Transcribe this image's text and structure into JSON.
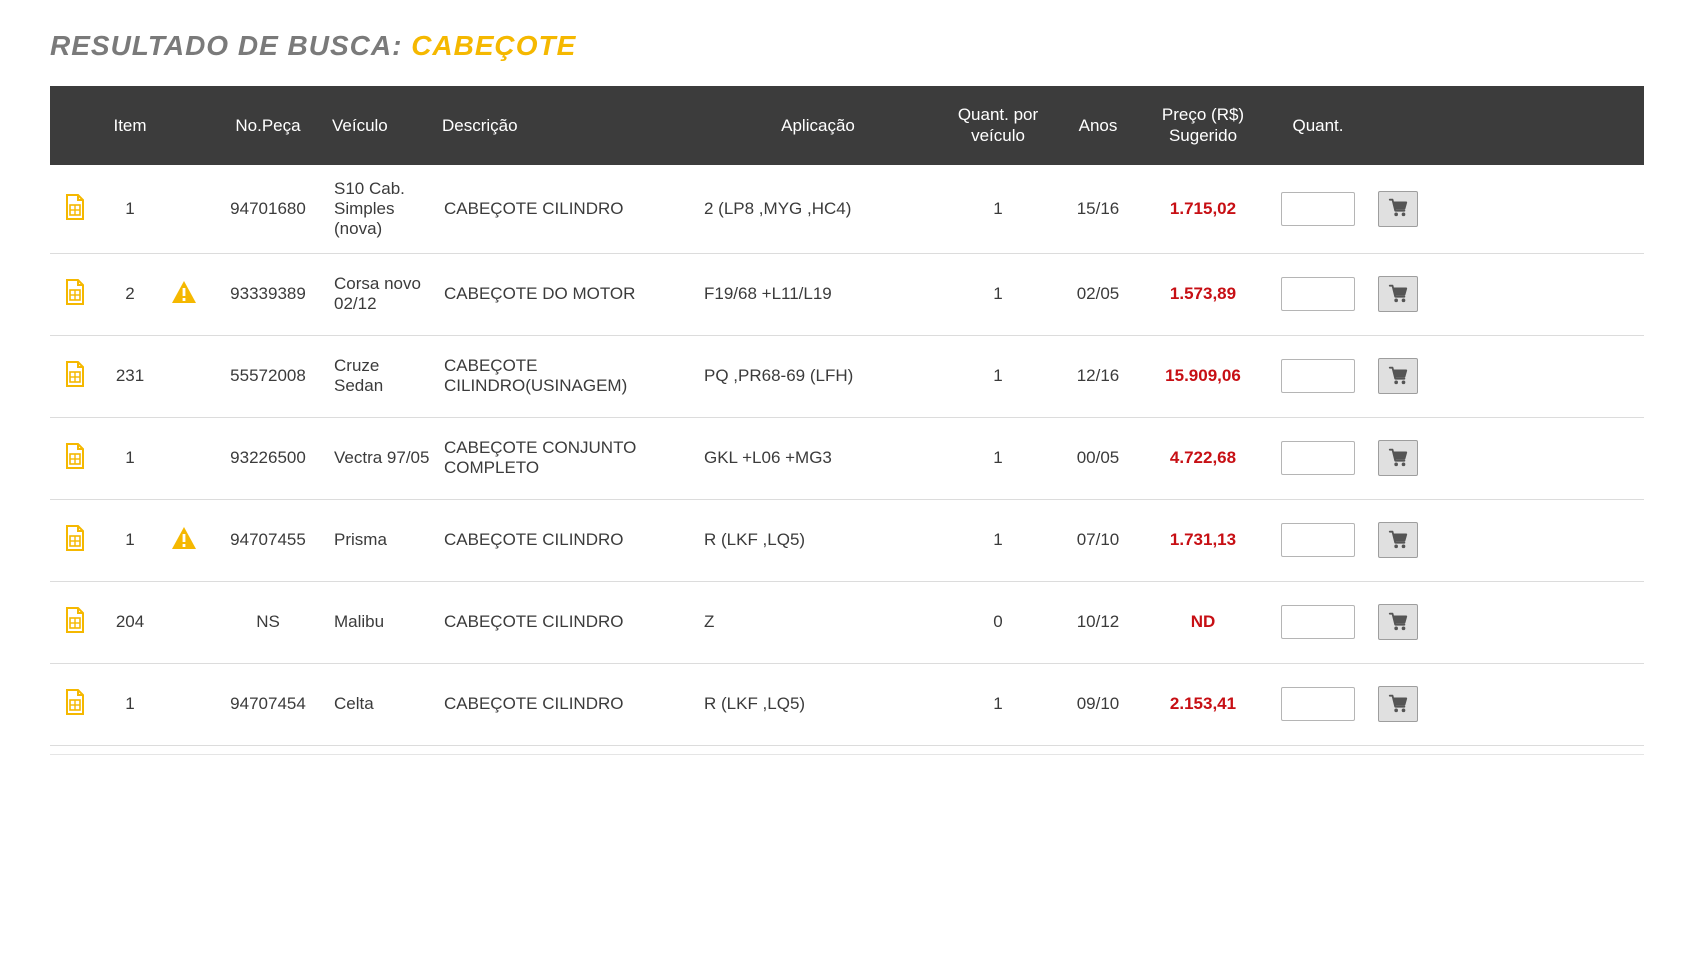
{
  "title_prefix": "RESULTADO DE BUSCA: ",
  "title_term": "CABEÇOTE",
  "colors": {
    "accent_yellow": "#f5b800",
    "header_bg": "#3c3c3c",
    "price": "#c70f14",
    "text_muted": "#7a7a7a"
  },
  "columns": {
    "icon": "",
    "item": "Item",
    "warn": "",
    "part_no": "No.Peça",
    "vehicle": "Veículo",
    "description": "Descrição",
    "application": "Aplicação",
    "qty_per_vehicle": "Quant. por veículo",
    "years": "Anos",
    "price": "Preço (R$) Sugerido",
    "qty": "Quant.",
    "cart": ""
  },
  "rows": [
    {
      "item": "1",
      "warn": false,
      "part_no": "94701680",
      "vehicle": "S10 Cab. Simples (nova)",
      "description": "CABEÇOTE CILINDRO",
      "application": "2 (LP8 ,MYG ,HC4)",
      "qty_per_vehicle": "1",
      "years": "15/16",
      "price": "1.715,02",
      "qty": ""
    },
    {
      "item": "2",
      "warn": true,
      "part_no": "93339389",
      "vehicle": "Corsa novo 02/12",
      "description": "CABEÇOTE DO MOTOR",
      "application": "F19/68 +L11/L19",
      "qty_per_vehicle": "1",
      "years": "02/05",
      "price": "1.573,89",
      "qty": ""
    },
    {
      "item": "231",
      "warn": false,
      "part_no": "55572008",
      "vehicle": "Cruze Sedan",
      "description": "CABEÇOTE CILINDRO(USINAGEM)",
      "application": "PQ ,PR68-69 (LFH)",
      "qty_per_vehicle": "1",
      "years": "12/16",
      "price": "15.909,06",
      "qty": ""
    },
    {
      "item": "1",
      "warn": false,
      "part_no": "93226500",
      "vehicle": "Vectra 97/05",
      "description": "CABEÇOTE CONJUNTO COMPLETO",
      "application": "GKL +L06 +MG3",
      "qty_per_vehicle": "1",
      "years": "00/05",
      "price": "4.722,68",
      "qty": ""
    },
    {
      "item": "1",
      "warn": true,
      "part_no": "94707455",
      "vehicle": "Prisma",
      "description": "CABEÇOTE CILINDRO",
      "application": "R (LKF ,LQ5)",
      "qty_per_vehicle": "1",
      "years": "07/10",
      "price": "1.731,13",
      "qty": ""
    },
    {
      "item": "204",
      "warn": false,
      "part_no": "NS",
      "vehicle": "Malibu",
      "description": "CABEÇOTE CILINDRO",
      "application": "Z",
      "qty_per_vehicle": "0",
      "years": "10/12",
      "price": "ND",
      "qty": ""
    },
    {
      "item": "1",
      "warn": false,
      "part_no": "94707454",
      "vehicle": "Celta",
      "description": "CABEÇOTE CILINDRO",
      "application": "R (LKF ,LQ5)",
      "qty_per_vehicle": "1",
      "years": "09/10",
      "price": "2.153,41",
      "qty": ""
    }
  ]
}
